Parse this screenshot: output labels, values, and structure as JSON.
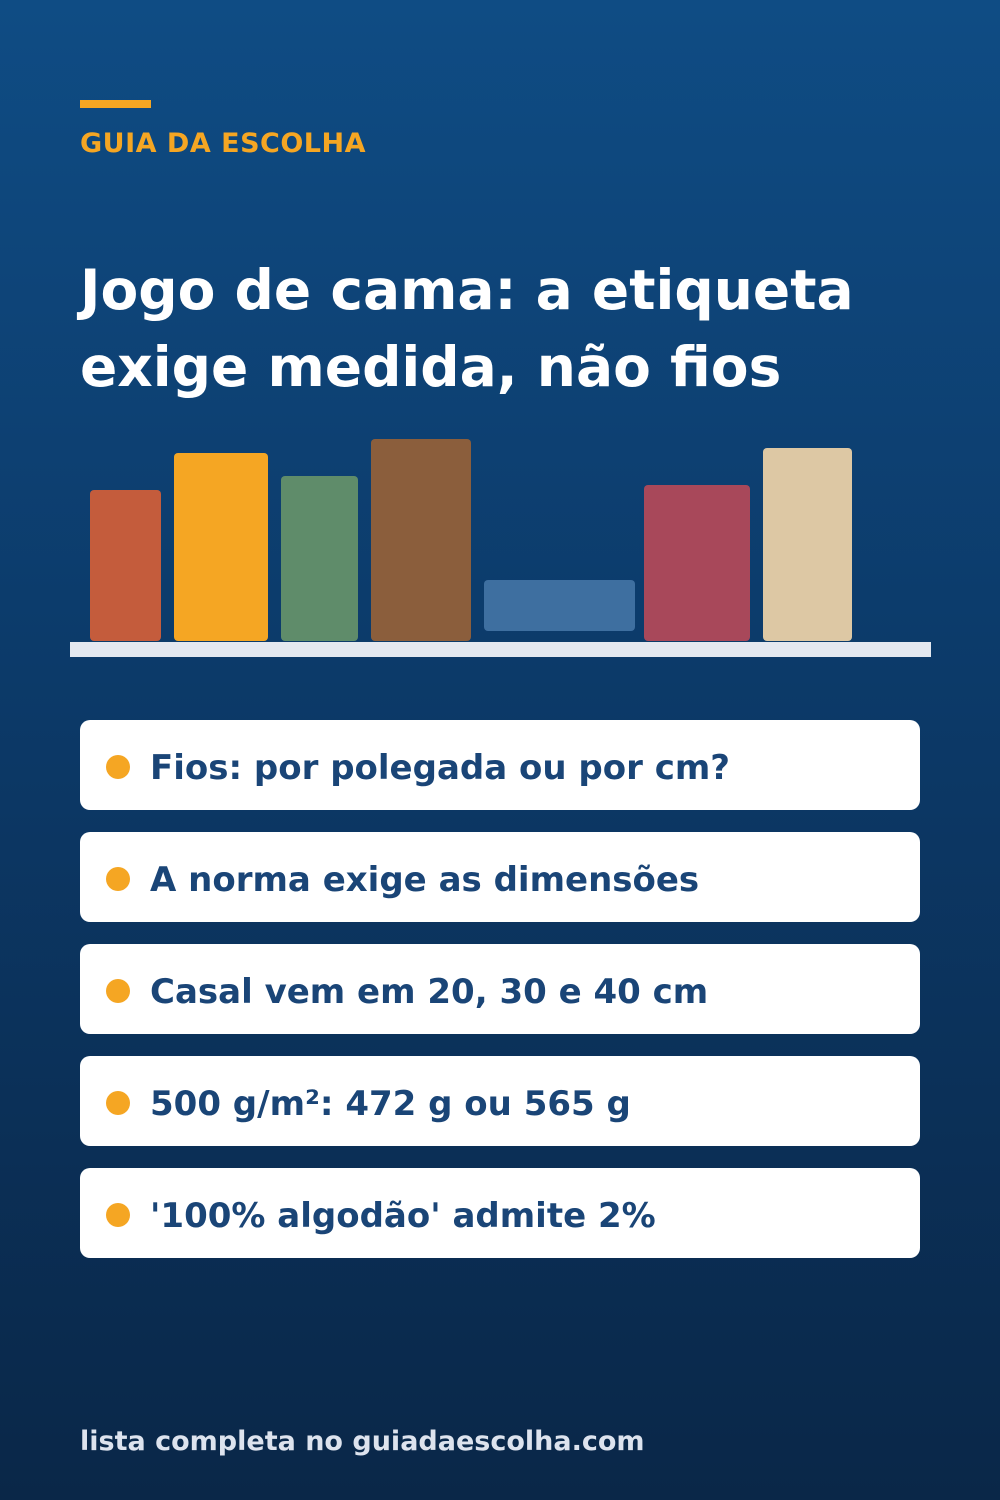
{
  "brand": {
    "label": "GUIA DA ESCOLHA",
    "accent_color": "#f5a623"
  },
  "title": {
    "line1": "Jogo de cama: a etiqueta",
    "line2": "exige medida, não fios"
  },
  "illustration": {
    "description_icon": "stacked-folded-linens",
    "colors": [
      "#c45c3c",
      "#f5a623",
      "#5f8c6a",
      "#8b5e3c",
      "#3e6fa0",
      "#a8485a",
      "#ddc8a4"
    ]
  },
  "items": [
    {
      "text": "Fios: por polegada ou por cm?"
    },
    {
      "text": "A norma exige as dimensões"
    },
    {
      "text": "Casal vem em 20, 30 e 40 cm"
    },
    {
      "text": "500 g/m²: 472 g ou 565 g"
    },
    {
      "text": "'100% algodão' admite 2%"
    }
  ],
  "footer": {
    "text": "lista completa no guiadaescolha.com"
  }
}
